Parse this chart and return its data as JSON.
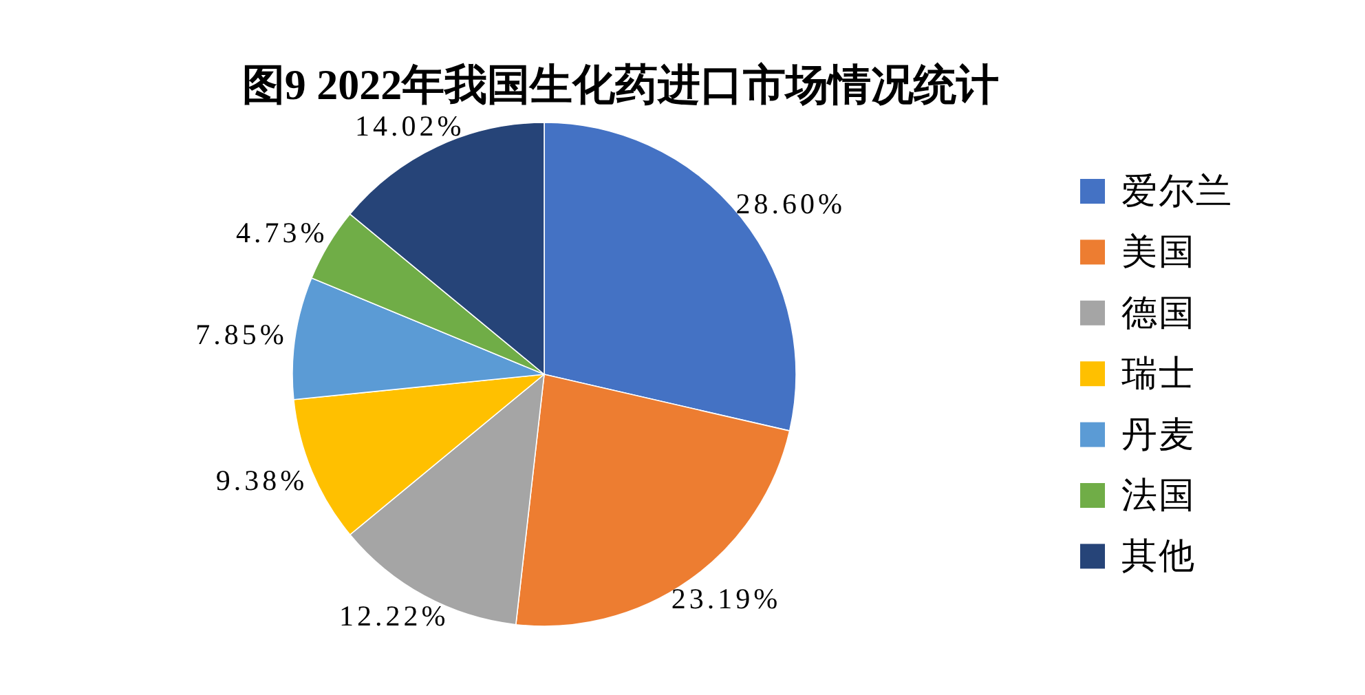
{
  "chart_data": {
    "type": "pie",
    "title": "图9 2022年我国生化药进口市场情况统计",
    "categories": [
      "爱尔兰",
      "美国",
      "德国",
      "瑞士",
      "丹麦",
      "法国",
      "其他"
    ],
    "values": [
      28.6,
      23.19,
      12.22,
      9.38,
      7.85,
      4.73,
      14.02
    ],
    "colors": [
      "#4472c4",
      "#ed7d31",
      "#a5a5a5",
      "#ffc000",
      "#5b9bd5",
      "#70ad47",
      "#264478"
    ],
    "value_labels": [
      "28.60%",
      "23.19%",
      "12.22%",
      "9.38%",
      "7.85%",
      "4.73%",
      "14.02%"
    ],
    "legend": "right"
  }
}
